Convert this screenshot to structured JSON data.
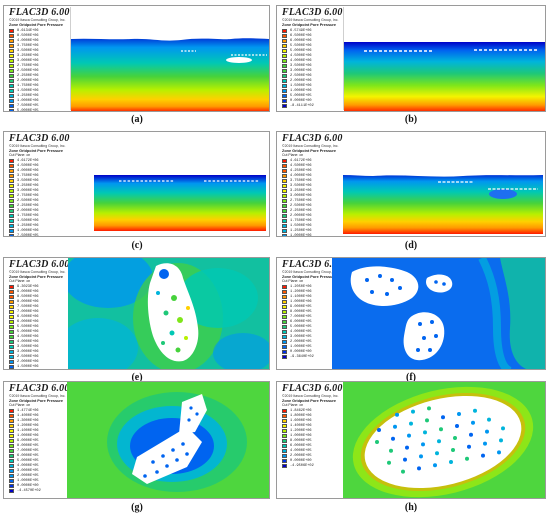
{
  "common": {
    "title": "FLAC3D 6.00",
    "copyright": "©2019 Itasca Consulting Group, Inc.",
    "legend_title": "Zone Gridpoint Pore Pressure"
  },
  "panels": [
    {
      "caption": "(a)",
      "cut_plane": "",
      "legend": [
        "8.6134E+06",
        "8.5000E+06",
        "4.0000E+06",
        "3.7500E+06",
        "3.5000E+06",
        "3.2500E+06",
        "3.0000E+06",
        "2.7500E+06",
        "2.5000E+06",
        "2.2500E+06",
        "2.0000E+06",
        "1.7500E+06",
        "1.5000E+06",
        "1.2500E+06",
        "1.0000E+06",
        "7.5000E+05",
        "5.0000E+05",
        "2.5000E+05",
        "0.0000E+00"
      ]
    },
    {
      "caption": "(b)",
      "cut_plane": "",
      "legend": [
        "6.5749E+06",
        "6.5000E+06",
        "6.0000E+06",
        "5.5000E+06",
        "5.0000E+06",
        "4.5000E+06",
        "4.0000E+06",
        "3.5000E+06",
        "3.0000E+06",
        "2.5000E+06",
        "2.0000E+06",
        "1.5000E+06",
        "1.0000E+06",
        "5.0000E+05",
        "0.0000E+00",
        "-8.4111E+02"
      ]
    },
    {
      "caption": "(c)",
      "cut_plane": "Cut Plane: on",
      "legend": [
        "4.6172E+06",
        "4.5000E+06",
        "4.0000E+06",
        "3.7500E+06",
        "3.5000E+06",
        "3.2500E+06",
        "3.0000E+06",
        "2.7500E+06",
        "2.5000E+06",
        "2.2500E+06",
        "2.0000E+06",
        "1.7500E+06",
        "1.5000E+06",
        "1.2500E+06",
        "1.0000E+06",
        "7.5000E+05",
        "5.0000E+05",
        "2.5000E+05",
        "0.0000E+00"
      ]
    },
    {
      "caption": "(d)",
      "cut_plane": "Cut Plane: on",
      "legend": [
        "4.6172E+06",
        "4.5000E+06",
        "4.2500E+06",
        "4.0000E+06",
        "3.7500E+06",
        "3.5000E+06",
        "3.2500E+06",
        "3.0000E+06",
        "2.7500E+06",
        "2.5000E+06",
        "2.2500E+06",
        "2.0000E+06",
        "1.7500E+06",
        "1.5000E+06",
        "1.2500E+06",
        "1.0000E+06",
        "7.5000E+05",
        "5.0000E+05",
        "2.5000E+05",
        "0.0000E+00"
      ]
    },
    {
      "caption": "(e)",
      "cut_plane": "Cut Plane: on",
      "legend": [
        "9.3023E+06",
        "9.0000E+06",
        "8.5000E+06",
        "8.0000E+06",
        "7.5000E+06",
        "7.0000E+06",
        "6.5000E+06",
        "6.0000E+06",
        "5.5000E+06",
        "5.0000E+06",
        "4.5000E+06",
        "4.0000E+06",
        "3.5000E+06",
        "3.0000E+06",
        "2.5000E+06",
        "2.0000E+06",
        "1.5000E+06",
        "1.0000E+06",
        "5.0000E+05",
        "0.0000E+00"
      ]
    },
    {
      "caption": "(f)",
      "cut_plane": "Cut Plane: on",
      "legend": [
        "1.2050E+06",
        "1.2000E+06",
        "1.1000E+06",
        "1.0000E+06",
        "9.0000E+05",
        "8.0000E+05",
        "7.0000E+05",
        "6.0000E+05",
        "5.0000E+05",
        "4.0000E+05",
        "3.0000E+05",
        "2.0000E+05",
        "1.0000E+05",
        "0.0000E+00",
        "-9.3640E+02"
      ]
    },
    {
      "caption": "(g)",
      "cut_plane": "Cut Plane: on",
      "legend": [
        "1.4774E+06",
        "1.4000E+06",
        "1.3000E+06",
        "1.2000E+06",
        "1.1000E+06",
        "1.0000E+06",
        "9.0000E+05",
        "8.0000E+05",
        "7.0000E+05",
        "6.0000E+05",
        "5.0000E+05",
        "4.0000E+05",
        "3.0000E+05",
        "2.0000E+05",
        "1.0000E+05",
        "0.0000E+00",
        "-4.4570E+02"
      ]
    },
    {
      "caption": "(h)",
      "cut_plane": "Cut Plane: on",
      "legend": [
        "1.8462E+06",
        "1.8000E+06",
        "1.6000E+06",
        "1.4000E+06",
        "1.2000E+06",
        "1.0000E+06",
        "8.0000E+05",
        "6.0000E+05",
        "4.0000E+05",
        "2.0000E+05",
        "0.0000E+00",
        "-4.9506E+02"
      ]
    }
  ],
  "colors": {
    "ramp": [
      "#ff1a00",
      "#ff5a00",
      "#ff9a00",
      "#ffd000",
      "#f4f400",
      "#b8f000",
      "#7ee61a",
      "#46d23c",
      "#1ec878",
      "#00c8b4",
      "#00b4dc",
      "#0096f0",
      "#0064f0",
      "#0032e6",
      "#0000c8"
    ],
    "void": "#ffffff",
    "frame": "#9a9a9a"
  }
}
